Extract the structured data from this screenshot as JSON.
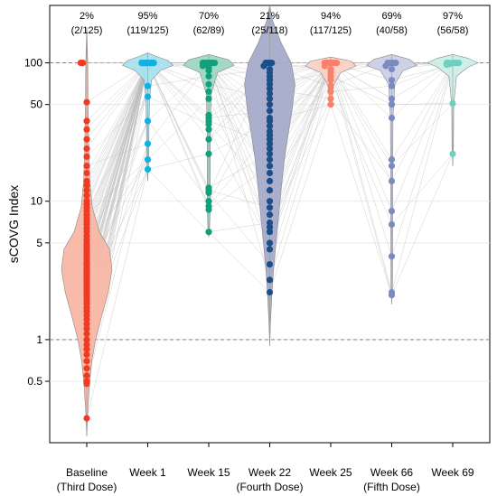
{
  "chart_data": {
    "type": "violin-dot",
    "ylabel": "sCOVG Index",
    "yscale": "log",
    "ylim": [
      0.18,
      260
    ],
    "yticks": [
      0.5,
      1,
      5,
      10,
      50,
      100
    ],
    "ytick_labels": [
      "0.5",
      "1",
      "5",
      "10",
      "50",
      "100"
    ],
    "reference_lines": [
      1,
      100
    ],
    "categories": [
      {
        "line1": "Baseline",
        "line2": "(Third Dose)",
        "color": "#f03a22",
        "fill": "#f8b6a4",
        "pct": "2%",
        "count": "(2/125)",
        "violin": [
          [
            0.2,
            0
          ],
          [
            0.3,
            0.04
          ],
          [
            0.45,
            0.1
          ],
          [
            0.7,
            0.2
          ],
          [
            1,
            0.35
          ],
          [
            1.5,
            0.6
          ],
          [
            2.2,
            0.85
          ],
          [
            3.2,
            1
          ],
          [
            4.5,
            0.9
          ],
          [
            6,
            0.5
          ],
          [
            9,
            0.22
          ],
          [
            14,
            0.12
          ],
          [
            25,
            0.08
          ],
          [
            50,
            0.05
          ],
          [
            100,
            0.04
          ],
          [
            180,
            0
          ]
        ],
        "points": [
          0.27,
          0.48,
          0.5,
          0.55,
          0.62,
          0.7,
          0.78,
          0.85,
          0.92,
          1,
          1.1,
          1.2,
          1.3,
          1.4,
          1.5,
          1.6,
          1.7,
          1.8,
          1.9,
          2,
          2.1,
          2.2,
          2.3,
          2.4,
          2.5,
          2.6,
          2.7,
          2.8,
          2.9,
          3,
          3.1,
          3.2,
          3.3,
          3.4,
          3.5,
          3.6,
          3.8,
          4,
          4.2,
          4.4,
          4.6,
          4.8,
          5,
          5.3,
          5.6,
          6,
          6.4,
          6.8,
          7.2,
          7.6,
          8,
          8.5,
          9,
          9.5,
          10,
          11,
          12,
          13,
          14,
          16,
          18,
          21,
          24,
          28,
          33,
          38,
          52,
          100,
          100
        ],
        "points_shown": 69
      },
      {
        "line1": "Week 1",
        "line2": "",
        "color": "#12b1e0",
        "fill": "#a9e0ef",
        "pct": "95%",
        "count": "(119/125)",
        "violin": [
          [
            14,
            0
          ],
          [
            20,
            0.04
          ],
          [
            35,
            0.05
          ],
          [
            55,
            0.07
          ],
          [
            75,
            0.15
          ],
          [
            88,
            0.5
          ],
          [
            96,
            1
          ],
          [
            104,
            0.8
          ],
          [
            112,
            0.3
          ],
          [
            118,
            0
          ]
        ],
        "points": [
          17,
          20,
          26,
          38,
          57,
          68,
          100,
          100,
          100,
          100,
          100,
          100,
          100,
          100,
          100,
          100,
          100,
          100,
          100,
          100,
          100,
          100,
          100,
          100,
          100
        ],
        "points_shown": 25
      },
      {
        "line1": "Week 15",
        "line2": "",
        "color": "#12a07c",
        "fill": "#9fd6c4",
        "pct": "70%",
        "count": "(62/89)",
        "violin": [
          [
            5.5,
            0
          ],
          [
            6,
            0.03
          ],
          [
            8,
            0.05
          ],
          [
            12,
            0.06
          ],
          [
            20,
            0.06
          ],
          [
            35,
            0.06
          ],
          [
            60,
            0.1
          ],
          [
            85,
            0.35
          ],
          [
            96,
            1
          ],
          [
            105,
            0.8
          ],
          [
            115,
            0
          ]
        ],
        "points": [
          6,
          8.7,
          9.2,
          10,
          11.5,
          12,
          12.5,
          22,
          28,
          33,
          36,
          38,
          40,
          42,
          55,
          62,
          70,
          80,
          88,
          92,
          95,
          98,
          100,
          100,
          100,
          100,
          100,
          100,
          100,
          100,
          100,
          100
        ],
        "points_shown": 32
      },
      {
        "line1": "Week 22",
        "line2": "(Fourth Dose)",
        "color": "#1a4f8b",
        "fill": "#a5abcb",
        "pct": "21%",
        "count": "(25/118)",
        "violin": [
          [
            0.9,
            0
          ],
          [
            1.3,
            0.03
          ],
          [
            2,
            0.08
          ],
          [
            3,
            0.14
          ],
          [
            5,
            0.25
          ],
          [
            8,
            0.36
          ],
          [
            12,
            0.45
          ],
          [
            20,
            0.58
          ],
          [
            30,
            0.72
          ],
          [
            45,
            0.88
          ],
          [
            70,
            1
          ],
          [
            100,
            0.85
          ],
          [
            140,
            0.45
          ],
          [
            200,
            0.12
          ],
          [
            260,
            0
          ]
        ],
        "points": [
          2.2,
          2.7,
          3.5,
          4.5,
          5,
          6,
          6.5,
          7,
          8,
          9,
          10,
          12,
          14,
          16,
          18,
          20,
          22,
          24,
          26,
          28,
          30,
          32,
          35,
          38,
          40,
          45,
          50,
          55,
          60,
          65,
          70,
          75,
          80,
          85,
          90,
          95,
          100,
          100,
          100,
          100
        ],
        "points_shown": 40
      },
      {
        "line1": "Week 25",
        "line2": "",
        "color": "#f9806a",
        "fill": "#fad2c6",
        "pct": "94%",
        "count": "(117/125)",
        "violin": [
          [
            48,
            0
          ],
          [
            55,
            0.05
          ],
          [
            70,
            0.12
          ],
          [
            85,
            0.4
          ],
          [
            95,
            1
          ],
          [
            103,
            0.8
          ],
          [
            110,
            0
          ]
        ],
        "points": [
          50,
          55,
          62,
          68,
          75,
          80,
          85,
          90,
          95,
          100,
          100,
          100,
          100,
          100,
          100,
          100,
          100,
          100,
          100,
          100,
          100,
          100,
          100,
          100
        ],
        "points_shown": 24
      },
      {
        "line1": "Week 66",
        "line2": "(Fifth Dose)",
        "color": "#7b8bbf",
        "fill": "#cbd0e6",
        "pct": "69%",
        "count": "(40/58)",
        "violin": [
          [
            1.8,
            0
          ],
          [
            2.5,
            0.03
          ],
          [
            6,
            0.04
          ],
          [
            15,
            0.04
          ],
          [
            40,
            0.05
          ],
          [
            70,
            0.12
          ],
          [
            88,
            0.45
          ],
          [
            96,
            1
          ],
          [
            106,
            0.7
          ],
          [
            115,
            0
          ]
        ],
        "points": [
          2.1,
          2.2,
          4,
          6.8,
          8.5,
          14,
          18,
          20,
          40,
          50,
          55,
          68,
          75,
          90,
          95,
          100,
          100,
          100,
          100,
          100
        ],
        "points_shown": 20
      },
      {
        "line1": "Week 69",
        "line2": "",
        "color": "#6ed0c0",
        "fill": "#cceee8",
        "pct": "97%",
        "count": "(56/58)",
        "violin": [
          [
            18,
            0
          ],
          [
            25,
            0.03
          ],
          [
            50,
            0.04
          ],
          [
            80,
            0.15
          ],
          [
            93,
            0.6
          ],
          [
            100,
            1
          ],
          [
            108,
            0.6
          ],
          [
            115,
            0
          ]
        ],
        "points": [
          22,
          51,
          97,
          98,
          99,
          100,
          100,
          100,
          100,
          100,
          100
        ],
        "points_shown": 11
      }
    ]
  }
}
